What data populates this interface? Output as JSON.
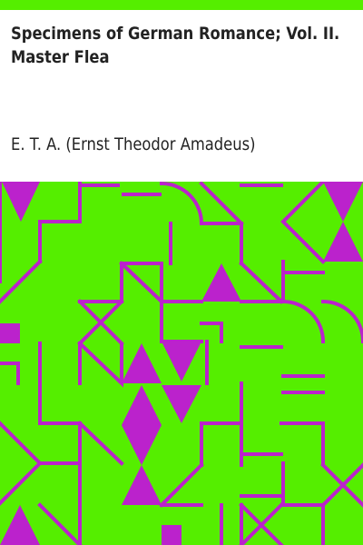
{
  "cover": {
    "title_line_1": "Specimens of German Romance; Vol. II.",
    "title_line_2": "Master Flea",
    "author": "E. T. A. (Ernst Theodor Amadeus)"
  },
  "colors": {
    "background": "#ffffff",
    "pattern_green": "#55ee00",
    "pattern_magenta": "#bb22cc",
    "text": "#222222"
  },
  "decoration": "geometric-pattern"
}
